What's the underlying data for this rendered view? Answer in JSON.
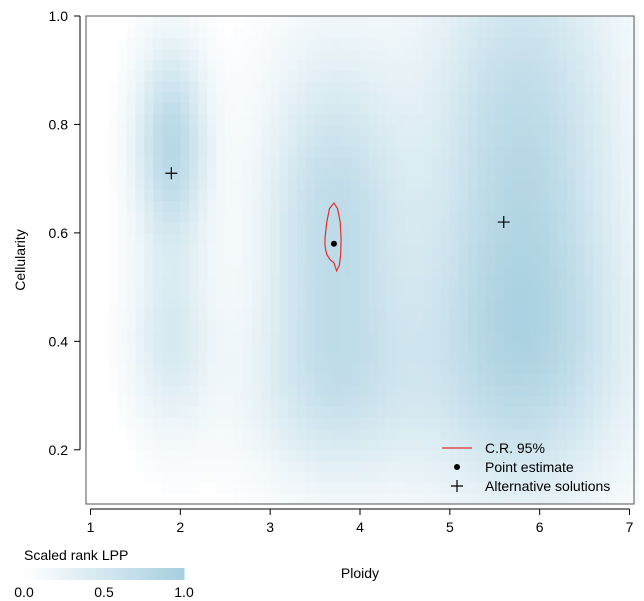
{
  "chart_data": {
    "type": "heatmap",
    "title": "",
    "xlabel": "Ploidy",
    "ylabel": "Cellularity",
    "xlim": [
      0.95,
      7.05
    ],
    "ylim": [
      0.1,
      1.0
    ],
    "x_ticks": [
      1,
      2,
      3,
      4,
      5,
      6,
      7
    ],
    "y_ticks": [
      0.2,
      0.4,
      0.6,
      0.8,
      1.0
    ],
    "x_tick_labels": [
      "1",
      "2",
      "3",
      "4",
      "5",
      "6",
      "7"
    ],
    "y_tick_labels": [
      "0.2",
      "0.4",
      "0.6",
      "0.8",
      "1.0"
    ],
    "heat_color": "#a7cfe0",
    "density_blobs": [
      {
        "ploidy": 1.9,
        "cellularity": 0.76,
        "sd_ploidy": 0.28,
        "sd_cellularity": 0.13,
        "weight": 0.85
      },
      {
        "ploidy": 1.9,
        "cellularity": 0.4,
        "sd_ploidy": 0.32,
        "sd_cellularity": 0.12,
        "weight": 0.45
      },
      {
        "ploidy": 3.7,
        "cellularity": 0.62,
        "sd_ploidy": 0.55,
        "sd_cellularity": 0.22,
        "weight": 0.75
      },
      {
        "ploidy": 3.7,
        "cellularity": 0.3,
        "sd_ploidy": 0.7,
        "sd_cellularity": 0.12,
        "weight": 0.4
      },
      {
        "ploidy": 5.8,
        "cellularity": 0.75,
        "sd_ploidy": 0.75,
        "sd_cellularity": 0.3,
        "weight": 0.8
      },
      {
        "ploidy": 5.8,
        "cellularity": 0.35,
        "sd_ploidy": 0.85,
        "sd_cellularity": 0.18,
        "weight": 0.6
      }
    ],
    "credible_region_95": [
      [
        3.61,
        0.59
      ],
      [
        3.63,
        0.62
      ],
      [
        3.66,
        0.645
      ],
      [
        3.71,
        0.655
      ],
      [
        3.75,
        0.645
      ],
      [
        3.78,
        0.62
      ],
      [
        3.79,
        0.59
      ],
      [
        3.785,
        0.56
      ],
      [
        3.77,
        0.54
      ],
      [
        3.74,
        0.53
      ],
      [
        3.71,
        0.545
      ],
      [
        3.67,
        0.55
      ],
      [
        3.63,
        0.56
      ],
      [
        3.61,
        0.575
      ]
    ],
    "point_estimate": {
      "ploidy": 3.71,
      "cellularity": 0.58
    },
    "alternative_solutions": [
      {
        "ploidy": 1.9,
        "cellularity": 0.71
      },
      {
        "ploidy": 5.6,
        "cellularity": 0.62
      }
    ],
    "legend": {
      "placement": "bottom-right",
      "entries": [
        {
          "label": "C.R. 95%",
          "symbol": "line",
          "color": "#e03030"
        },
        {
          "label": "Point estimate",
          "symbol": "dot",
          "color": "#000000"
        },
        {
          "label": "Alternative solutions",
          "symbol": "plus",
          "color": "#000000"
        }
      ]
    },
    "colorbar": {
      "title": "Scaled rank LPP",
      "min": 0.0,
      "max": 1.0,
      "tick_labels": [
        "0.0",
        "0.5",
        "1.0"
      ]
    }
  }
}
